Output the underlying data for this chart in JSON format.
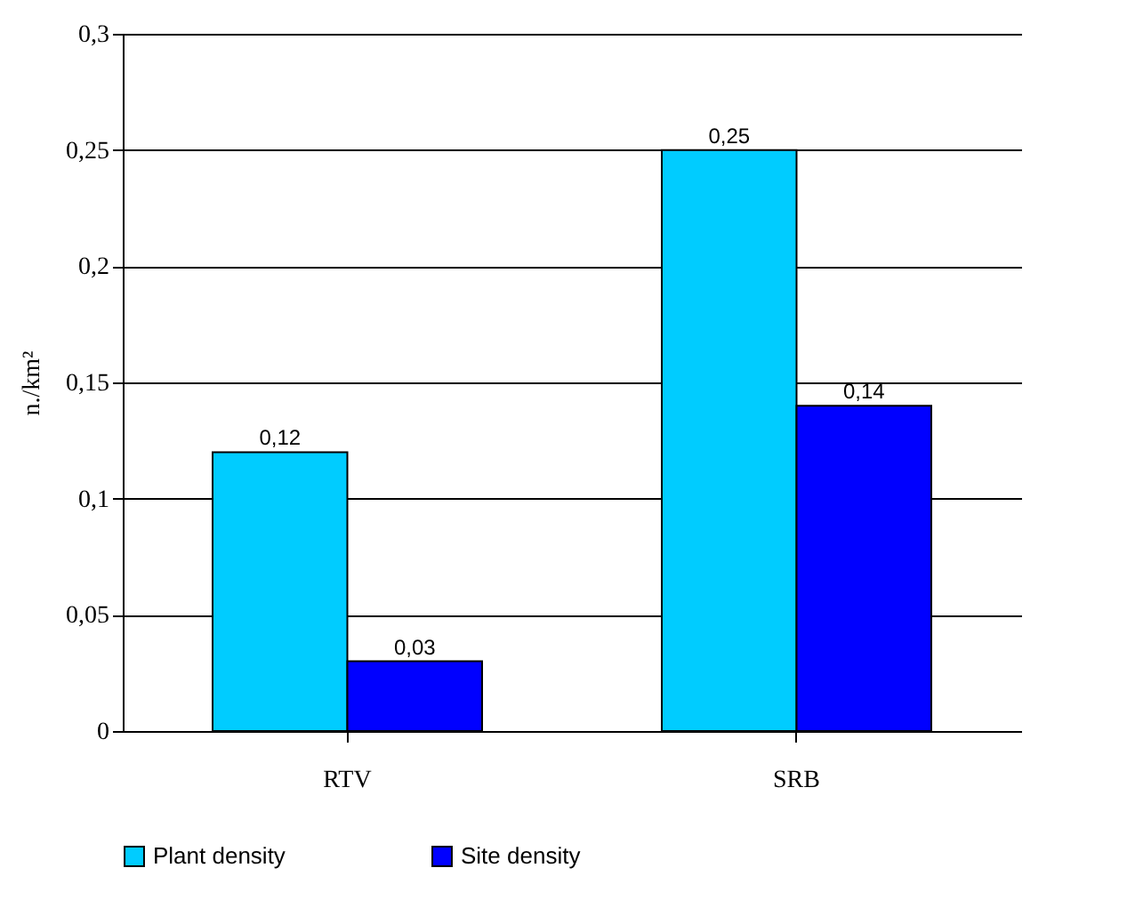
{
  "chart_data": {
    "type": "bar",
    "ylabel": "n./km²",
    "categories": [
      "RTV",
      "SRB"
    ],
    "series": [
      {
        "name": "Plant density",
        "color": "#00ccff",
        "values": [
          0.12,
          0.25
        ],
        "value_labels": [
          "0,12",
          "0,25"
        ]
      },
      {
        "name": "Site density",
        "color": "#0000ff",
        "values": [
          0.03,
          0.14
        ],
        "value_labels": [
          "0,03",
          "0,14"
        ]
      }
    ],
    "ylim": [
      0,
      0.3
    ],
    "yticks": [
      0,
      {
        "value": 0.05,
        "label": "0,05"
      },
      {
        "value": 0.1,
        "label": "0,1"
      },
      {
        "value": 0.15,
        "label": "0,15"
      },
      {
        "value": 0.2,
        "label": "0,2"
      },
      {
        "value": 0.25,
        "label": "0,25"
      },
      {
        "value": 0.3,
        "label": "0,3"
      }
    ],
    "grid": "y",
    "legend": "bottom"
  }
}
